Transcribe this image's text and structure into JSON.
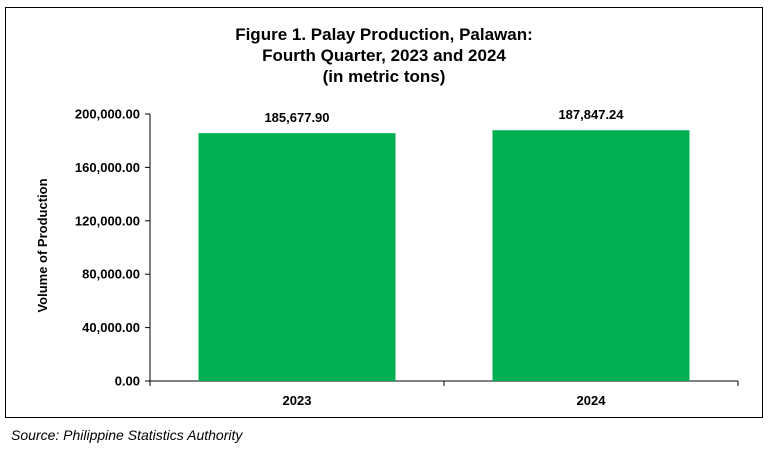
{
  "chart_data": {
    "type": "bar",
    "title_lines": [
      "Figure 1. Palay Production, Palawan:",
      "Fourth Quarter, 2023 and 2024",
      "(in metric tons)"
    ],
    "categories": [
      "2023",
      "2024"
    ],
    "values": [
      185677.9,
      187847.24
    ],
    "value_labels": [
      "185,677.90",
      "187,847.24"
    ],
    "xlabel": "",
    "ylabel": "Volume of Production",
    "ylim": [
      0,
      200000
    ],
    "yticks": [
      0,
      40000,
      80000,
      120000,
      160000,
      200000
    ],
    "ytick_labels": [
      "0.00",
      "40,000.00",
      "80,000.00",
      "120,000.00",
      "160,000.00",
      "200,000.00"
    ],
    "bar_color": "#00B050",
    "grid": false,
    "legend": "none"
  },
  "source_note": "Source: Philippine Statistics Authority"
}
